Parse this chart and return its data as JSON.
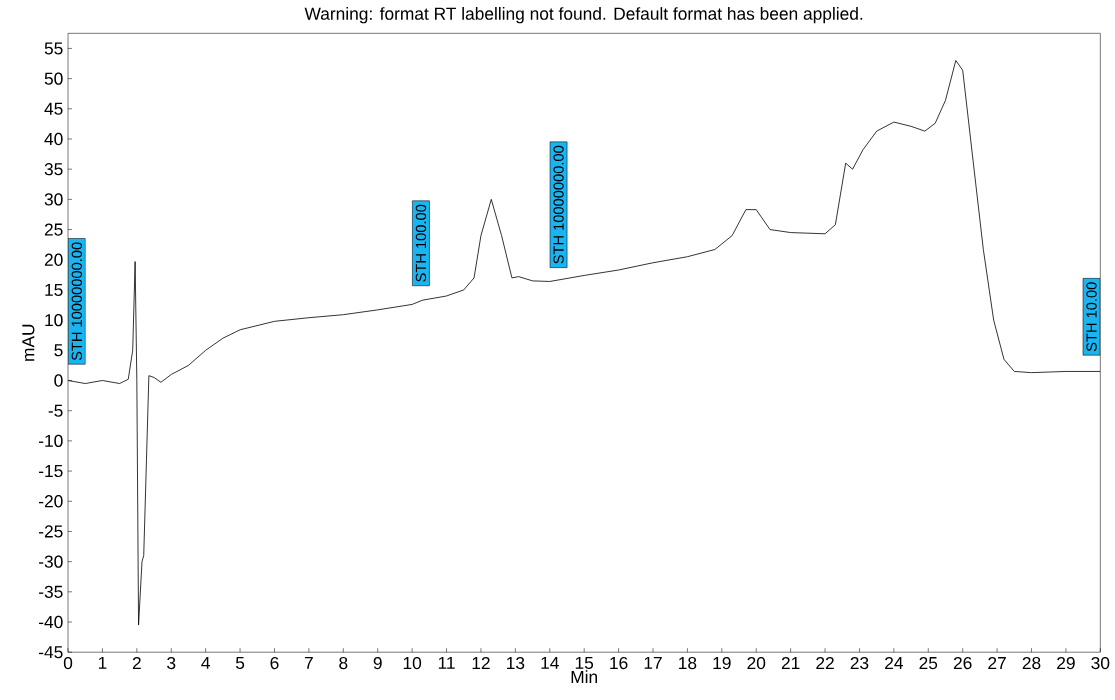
{
  "chart_data": {
    "type": "line",
    "title": "Warning: format RT labelling not found. Default format has been applied.",
    "xlabel": "Min",
    "ylabel": "mAU",
    "xlim": [
      0,
      30
    ],
    "ylim": [
      -45,
      57.5
    ],
    "xticks": [
      0,
      1,
      2,
      3,
      4,
      5,
      6,
      7,
      8,
      9,
      10,
      11,
      12,
      13,
      14,
      15,
      16,
      17,
      18,
      19,
      20,
      21,
      22,
      23,
      24,
      25,
      26,
      27,
      28,
      29,
      30
    ],
    "yticks": [
      -45,
      -40,
      -35,
      -30,
      -25,
      -20,
      -15,
      -10,
      -5,
      0,
      5,
      10,
      15,
      20,
      25,
      30,
      35,
      40,
      45,
      50,
      55
    ],
    "grid": false,
    "marker": "none",
    "line_style": "solid",
    "series": [
      {
        "color": "#000000",
        "x": [
          0,
          0.5,
          1,
          1.5,
          1.75,
          1.88,
          1.95,
          2.0,
          2.05,
          2.15,
          2.2,
          2.35,
          2.5,
          2.7,
          3,
          3.5,
          4,
          4.5,
          5,
          6,
          7,
          8,
          9,
          10,
          10.3,
          11,
          11.5,
          11.8,
          12.0,
          12.3,
          12.6,
          12.9,
          13.1,
          13.5,
          14,
          15,
          16,
          17,
          18,
          18.8,
          19.3,
          19.7,
          20.0,
          20.4,
          21,
          22,
          22.3,
          22.6,
          22.8,
          23.1,
          23.5,
          24,
          24.5,
          24.9,
          25.2,
          25.5,
          25.8,
          26.0,
          26.3,
          26.6,
          26.9,
          27.2,
          27.5,
          28,
          29,
          30
        ],
        "values": [
          0,
          -0.5,
          0,
          -0.5,
          0.2,
          5,
          19.7,
          0,
          -40.5,
          -30,
          -29,
          0.8,
          0.5,
          -0.3,
          1,
          2.5,
          5,
          7,
          8.4,
          9.8,
          10.4,
          10.9,
          11.7,
          12.6,
          13.3,
          14,
          15,
          17,
          24,
          30,
          24,
          17,
          17.2,
          16.5,
          16.4,
          17.4,
          18.3,
          19.5,
          20.5,
          21.7,
          24,
          28.3,
          28.3,
          25,
          24.5,
          24.3,
          25.8,
          36,
          35,
          38.2,
          41.3,
          42.8,
          42.1,
          41.3,
          42.6,
          46.4,
          53,
          51.4,
          36.5,
          21.7,
          10,
          3.5,
          1.5,
          1.3,
          1.5,
          1.5
        ]
      }
    ],
    "annotations": [
      {
        "text": "STH 10000000.00",
        "x": 0,
        "y": 0
      },
      {
        "text": "STH 100.00",
        "x": 10,
        "y": 13
      },
      {
        "text": "STH 10000000.00",
        "x": 14,
        "y": 16
      },
      {
        "text": "STH 10.00",
        "x": 30,
        "y": 1.5
      }
    ]
  }
}
